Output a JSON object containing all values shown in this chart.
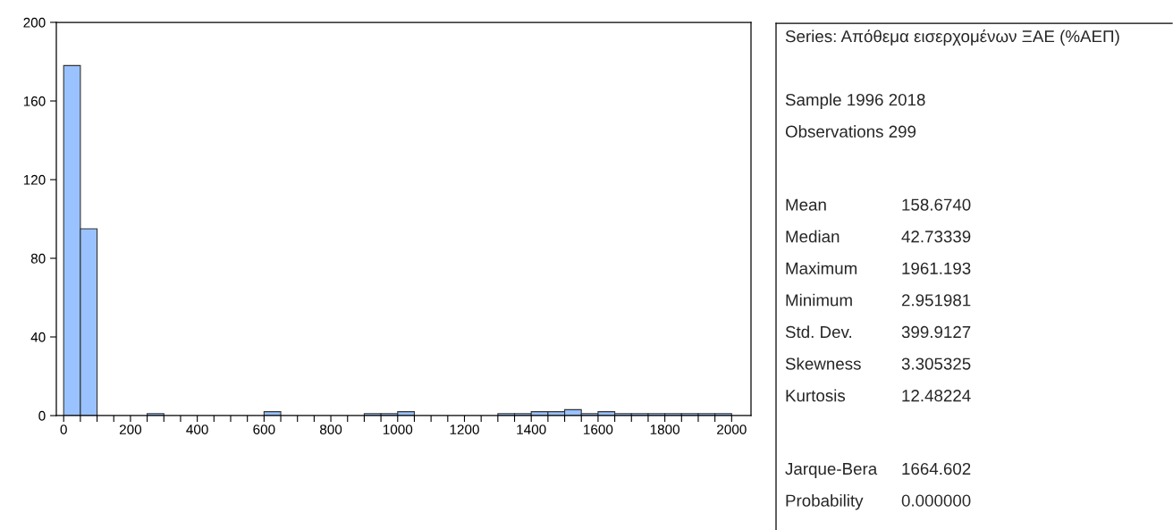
{
  "chart_data": [
    {
      "type": "histogram",
      "color": "#99c2ff",
      "bins": [
        0,
        50,
        100,
        150,
        200,
        250,
        300,
        350,
        400,
        450,
        500,
        550,
        600,
        650,
        700,
        750,
        800,
        850,
        900,
        950,
        1000,
        1050,
        1100,
        1150,
        1200,
        1250,
        1300,
        1350,
        1400,
        1450,
        1500,
        1550,
        1600,
        1650,
        1700,
        1750,
        1800,
        1850,
        1900,
        1950,
        2000
      ],
      "values": [
        178,
        95,
        0,
        0,
        0,
        1,
        0,
        0,
        0,
        0,
        0,
        0,
        2,
        0,
        0,
        0,
        0,
        0,
        1,
        1,
        2,
        0,
        0,
        0,
        0,
        0,
        1,
        1,
        2,
        2,
        3,
        1,
        2,
        1,
        1,
        1,
        1,
        1,
        1,
        1
      ],
      "xlim": [
        -22,
        2058
      ],
      "ylim": [
        0,
        200
      ],
      "xticks": [
        0,
        {
          "value": 50,
          "label": null
        },
        {
          "value": 100,
          "label": null
        },
        {
          "value": 150,
          "label": null
        },
        200,
        {
          "value": 250,
          "label": null
        },
        {
          "value": 300,
          "label": null
        },
        {
          "value": 350,
          "label": null
        },
        400,
        {
          "value": 450,
          "label": null
        },
        {
          "value": 500,
          "label": null
        },
        {
          "value": 550,
          "label": null
        },
        600,
        {
          "value": 650,
          "label": null
        },
        {
          "value": 700,
          "label": null
        },
        {
          "value": 750,
          "label": null
        },
        800,
        {
          "value": 850,
          "label": null
        },
        {
          "value": 900,
          "label": null
        },
        {
          "value": 950,
          "label": null
        },
        1000,
        {
          "value": 1050,
          "label": null
        },
        {
          "value": 1100,
          "label": null
        },
        {
          "value": 1150,
          "label": null
        },
        1200,
        {
          "value": 1250,
          "label": null
        },
        {
          "value": 1300,
          "label": null
        },
        {
          "value": 1350,
          "label": null
        },
        1400,
        {
          "value": 1450,
          "label": null
        },
        {
          "value": 1500,
          "label": null
        },
        {
          "value": 1550,
          "label": null
        },
        1600,
        {
          "value": 1650,
          "label": null
        },
        {
          "value": 1700,
          "label": null
        },
        {
          "value": 1750,
          "label": null
        },
        1800,
        {
          "value": 1850,
          "label": null
        },
        {
          "value": 1900,
          "label": null
        },
        {
          "value": 1950,
          "label": null
        },
        2000
      ],
      "yticks": [
        0,
        40,
        80,
        120,
        160,
        200
      ],
      "grid": false,
      "legend": false
    },
    {
      "type": "other",
      "annotations": [
        "Series: Απόθεμα εισερχομένων ΞΑΕ (%ΑΕΠ)",
        "Sample 1996 2018",
        "Observations 299",
        "Mean",
        "158.6740",
        "Median",
        "42.73339",
        "Maximum",
        "1961.193",
        "Minimum",
        "2.951981",
        "Std. Dev.",
        "399.9127",
        "Skewness",
        "3.305325",
        "Kurtosis",
        "12.48224",
        "Jarque-Bera",
        "1664.602",
        "Probability",
        "0.000000"
      ]
    }
  ]
}
